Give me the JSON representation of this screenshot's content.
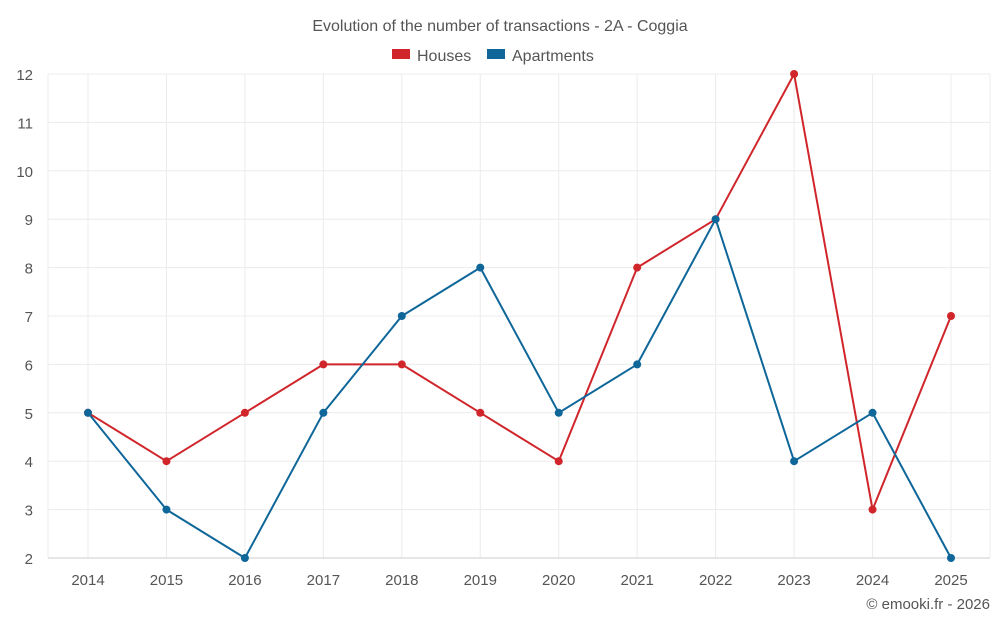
{
  "chart_data": {
    "type": "line",
    "title": "Evolution of the number of transactions - 2A - Coggia",
    "categories": [
      "2014",
      "2015",
      "2016",
      "2017",
      "2018",
      "2019",
      "2020",
      "2021",
      "2022",
      "2023",
      "2024",
      "2025"
    ],
    "series": [
      {
        "name": "Houses",
        "color": "#d0262b",
        "values": [
          5,
          4,
          5,
          6,
          6,
          5,
          4,
          8,
          9,
          12,
          3,
          7
        ]
      },
      {
        "name": "Apartments",
        "color": "#0e6699",
        "values": [
          5,
          3,
          2,
          5,
          7,
          8,
          5,
          6,
          9,
          4,
          5,
          2
        ]
      }
    ],
    "ylim": [
      2,
      12
    ],
    "yticks": [
      2,
      3,
      4,
      5,
      6,
      7,
      8,
      9,
      10,
      11,
      12
    ],
    "xlabel": "",
    "ylabel": "",
    "grid": true,
    "legend_position": "top-center"
  },
  "footer": {
    "credit": "© emooki.fr - 2026"
  }
}
